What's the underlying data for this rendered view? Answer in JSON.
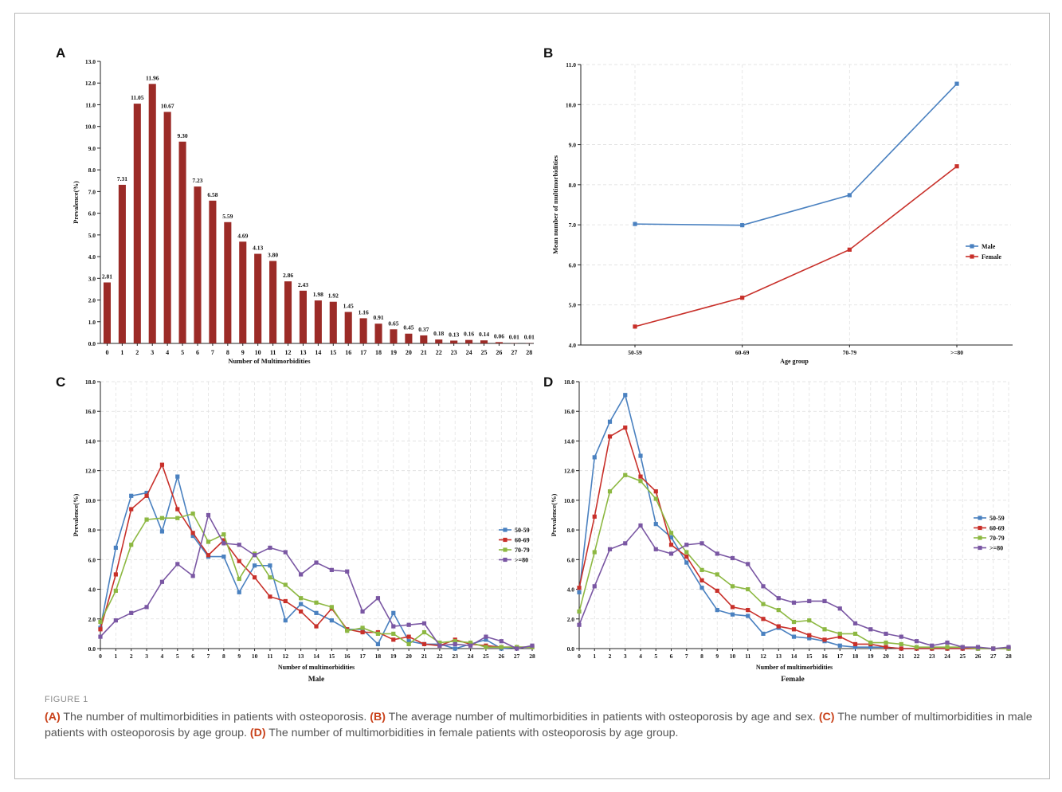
{
  "figure_label": "FIGURE 1",
  "caption": [
    {
      "tag": "(A)",
      "text": " The number of multimorbidities in patients with osteoporosis. "
    },
    {
      "tag": "(B)",
      "text": " The average number of multimorbidities in patients with osteoporosis by age and sex. "
    },
    {
      "tag": "(C)",
      "text": " The number of multimorbidities in male patients with osteoporosis by age group. "
    },
    {
      "tag": "(D)",
      "text": " The number of multimorbidities in female patients with osteoporosis by age group."
    }
  ],
  "colors": {
    "bar": "#9b2b27",
    "male": "#4a81c0",
    "female": "#c8302a",
    "s5059": "#4a81c0",
    "s6069": "#c8302a",
    "s7079": "#8db842",
    "s80": "#7a57a3"
  },
  "chart_data": [
    {
      "panel": "A",
      "type": "bar",
      "xlabel": "Number of Multimorbidities",
      "ylabel": "Prevalence(%)",
      "ylim": [
        0,
        13
      ],
      "yticks": [
        "0.0",
        "1.0",
        "2.0",
        "3.0",
        "4.0",
        "5.0",
        "6.0",
        "7.0",
        "8.0",
        "9.0",
        "10.0",
        "11.0",
        "12.0",
        "13.0"
      ],
      "categories": [
        "0",
        "1",
        "2",
        "3",
        "4",
        "5",
        "6",
        "7",
        "8",
        "9",
        "10",
        "11",
        "12",
        "13",
        "14",
        "15",
        "16",
        "17",
        "18",
        "19",
        "20",
        "21",
        "22",
        "23",
        "24",
        "25",
        "26",
        "27",
        "28"
      ],
      "values": [
        2.81,
        7.31,
        11.05,
        11.96,
        10.67,
        9.3,
        7.23,
        6.58,
        5.59,
        4.69,
        4.13,
        3.8,
        2.86,
        2.43,
        1.98,
        1.92,
        1.45,
        1.16,
        0.91,
        0.65,
        0.45,
        0.37,
        0.18,
        0.13,
        0.16,
        0.14,
        0.06,
        0.01,
        0.01
      ],
      "data_labels": [
        "2.81",
        "7.31",
        "11.05",
        "11.96",
        "10.67",
        "9.30",
        "7.23",
        "6.58",
        "5.59",
        "4.69",
        "4.13",
        "3.80",
        "2.86",
        "2.43",
        "1.98",
        "1.92",
        "1.45",
        "1.16",
        "0.91",
        "0.65",
        "0.45",
        "0.37",
        "0.18",
        "0.13",
        "0.16",
        "0.14",
        "0.06",
        "0.01",
        "0.01"
      ],
      "grid": false
    },
    {
      "panel": "B",
      "type": "line",
      "xlabel": "Age group",
      "ylabel": "Mean number of multimorbidities",
      "ylim": [
        4,
        11
      ],
      "yticks": [
        "4.0",
        "5.0",
        "6.0",
        "7.0",
        "8.0",
        "9.0",
        "10.0",
        "11.0"
      ],
      "categories": [
        "50-59",
        "60-69",
        "70-79",
        ">=80"
      ],
      "series": [
        {
          "name": "Male",
          "values": [
            7.02,
            6.99,
            7.74,
            10.52
          ]
        },
        {
          "name": "Female",
          "values": [
            4.46,
            5.18,
            6.38,
            8.46
          ]
        }
      ],
      "legend": "right",
      "grid": true
    },
    {
      "panel": "C",
      "type": "line",
      "xlabel": "Number of multimorbidities",
      "ylabel": "Prevalence(%)",
      "subtitle": "Male",
      "ylim": [
        0,
        18
      ],
      "yticks": [
        "0.0",
        "2.0",
        "4.0",
        "6.0",
        "8.0",
        "10.0",
        "12.0",
        "14.0",
        "16.0",
        "18.0"
      ],
      "categories": [
        "0",
        "1",
        "2",
        "3",
        "4",
        "5",
        "6",
        "7",
        "8",
        "9",
        "10",
        "11",
        "12",
        "13",
        "14",
        "15",
        "16",
        "17",
        "18",
        "19",
        "20",
        "21",
        "22",
        "23",
        "24",
        "25",
        "26",
        "27",
        "28"
      ],
      "series": [
        {
          "name": "50-59",
          "values": [
            1.4,
            6.8,
            10.3,
            10.5,
            7.9,
            11.6,
            7.6,
            6.2,
            6.2,
            3.8,
            5.6,
            5.6,
            1.9,
            3.0,
            2.4,
            1.9,
            1.3,
            1.3,
            0.3,
            2.4,
            0.5,
            0.3,
            0.3,
            0.0,
            0.3,
            0.6,
            0.0,
            0.1,
            0.1
          ]
        },
        {
          "name": "60-69",
          "values": [
            1.3,
            5.0,
            9.4,
            10.3,
            12.4,
            9.4,
            7.8,
            6.3,
            7.3,
            5.9,
            4.8,
            3.5,
            3.2,
            2.5,
            1.5,
            2.7,
            1.3,
            1.1,
            1.1,
            0.6,
            0.8,
            0.3,
            0.2,
            0.6,
            0.3,
            0.2,
            0.1,
            0.1,
            0.1
          ]
        },
        {
          "name": "70-79",
          "values": [
            1.8,
            3.9,
            7.0,
            8.7,
            8.8,
            8.8,
            9.1,
            7.2,
            7.7,
            4.7,
            6.4,
            4.8,
            4.3,
            3.4,
            3.1,
            2.8,
            1.2,
            1.4,
            1.0,
            1.0,
            0.3,
            1.1,
            0.4,
            0.5,
            0.4,
            0.1,
            0.1,
            0.1,
            0.1
          ]
        },
        {
          "name": ">=80",
          "values": [
            0.8,
            1.9,
            2.4,
            2.8,
            4.5,
            5.7,
            4.9,
            9.0,
            7.1,
            7.0,
            6.3,
            6.8,
            6.5,
            5.0,
            5.8,
            5.3,
            5.2,
            2.5,
            3.4,
            1.5,
            1.6,
            1.7,
            0.2,
            0.3,
            0.2,
            0.8,
            0.5,
            0.0,
            0.2
          ]
        }
      ],
      "legend": "right",
      "grid": true
    },
    {
      "panel": "D",
      "type": "line",
      "xlabel": "Number of multimorbidities",
      "ylabel": "Prevalence(%)",
      "subtitle": "Female",
      "ylim": [
        0,
        18
      ],
      "yticks": [
        "0.0",
        "2.0",
        "4.0",
        "6.0",
        "8.0",
        "10.0",
        "12.0",
        "14.0",
        "16.0",
        "18.0"
      ],
      "categories": [
        "0",
        "1",
        "2",
        "3",
        "4",
        "5",
        "6",
        "7",
        "8",
        "9",
        "10",
        "11",
        "12",
        "13",
        "14",
        "15",
        "16",
        "17",
        "18",
        "19",
        "20",
        "21",
        "22",
        "23",
        "24",
        "25",
        "26",
        "27",
        "28"
      ],
      "series": [
        {
          "name": "50-59",
          "values": [
            3.8,
            12.9,
            15.3,
            17.1,
            13.0,
            8.4,
            7.5,
            5.8,
            4.1,
            2.6,
            2.3,
            2.2,
            1.0,
            1.4,
            0.8,
            0.7,
            0.5,
            0.2,
            0.1,
            0.1,
            0.1,
            0.0,
            0.0,
            0.0,
            0.0,
            0.0,
            0.0,
            0.0,
            0.0
          ]
        },
        {
          "name": "60-69",
          "values": [
            4.1,
            8.9,
            14.3,
            14.9,
            11.6,
            10.6,
            7.0,
            6.2,
            4.6,
            3.9,
            2.8,
            2.6,
            2.0,
            1.5,
            1.3,
            0.9,
            0.6,
            0.8,
            0.3,
            0.3,
            0.1,
            0.0,
            0.0,
            0.0,
            0.0,
            0.0,
            0.0,
            0.0,
            0.0
          ]
        },
        {
          "name": "70-79",
          "values": [
            2.5,
            6.5,
            10.6,
            11.7,
            11.3,
            10.1,
            7.8,
            6.5,
            5.3,
            5.0,
            4.2,
            4.0,
            3.0,
            2.6,
            1.8,
            1.9,
            1.3,
            1.0,
            1.0,
            0.4,
            0.4,
            0.3,
            0.1,
            0.1,
            0.1,
            0.1,
            0.0,
            0.0,
            0.0
          ]
        },
        {
          "name": ">=80",
          "values": [
            1.6,
            4.2,
            6.7,
            7.1,
            8.3,
            6.7,
            6.4,
            7.0,
            7.1,
            6.4,
            6.1,
            5.7,
            4.2,
            3.4,
            3.1,
            3.2,
            3.2,
            2.7,
            1.7,
            1.3,
            1.0,
            0.8,
            0.5,
            0.2,
            0.4,
            0.1,
            0.1,
            0.0,
            0.1
          ]
        }
      ],
      "legend": "right",
      "grid": true
    }
  ]
}
